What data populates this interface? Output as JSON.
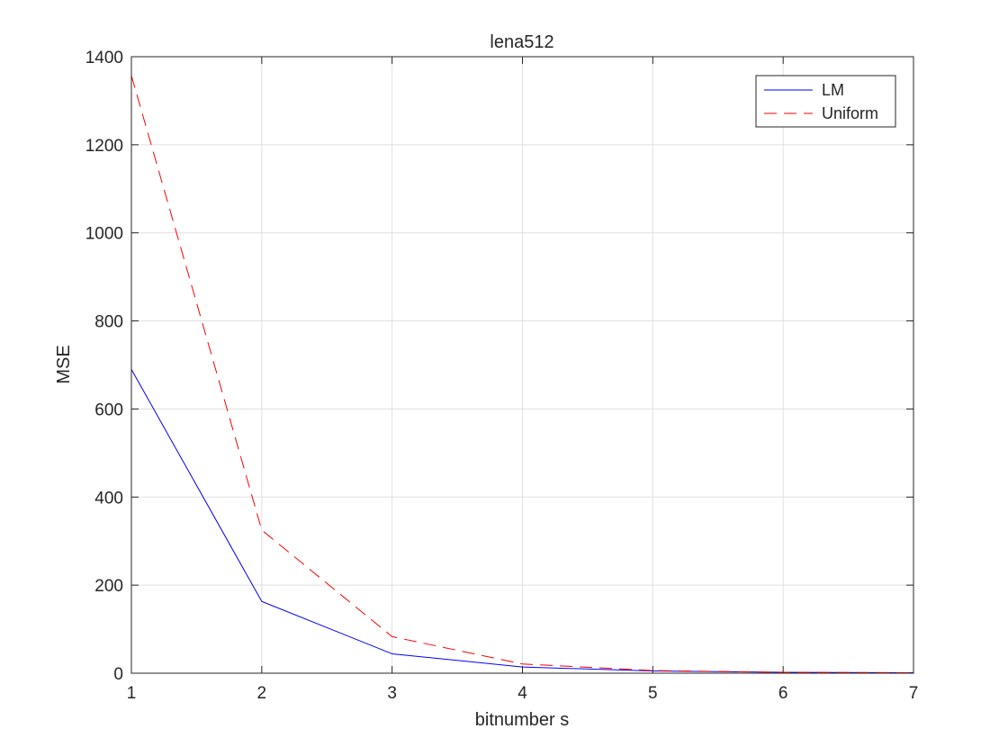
{
  "chart_data": {
    "type": "line",
    "title": "lena512",
    "xlabel": "bitnumber s",
    "ylabel": "MSE",
    "xlim": [
      1,
      7
    ],
    "ylim": [
      0,
      1400
    ],
    "xticks": [
      1,
      2,
      3,
      4,
      5,
      6,
      7
    ],
    "yticks": [
      0,
      200,
      400,
      600,
      800,
      1000,
      1200,
      1400
    ],
    "grid": true,
    "legend_position": "top-right",
    "x": [
      1,
      2,
      3,
      4,
      5,
      6,
      7
    ],
    "series": [
      {
        "name": "LM",
        "values": [
          690,
          163,
          44,
          14,
          5,
          2,
          1
        ],
        "color": "#0000ff",
        "style": "solid"
      },
      {
        "name": "Uniform",
        "values": [
          1357,
          325,
          83,
          21,
          6,
          2,
          1
        ],
        "color": "#ff0000",
        "style": "dashed"
      }
    ]
  }
}
